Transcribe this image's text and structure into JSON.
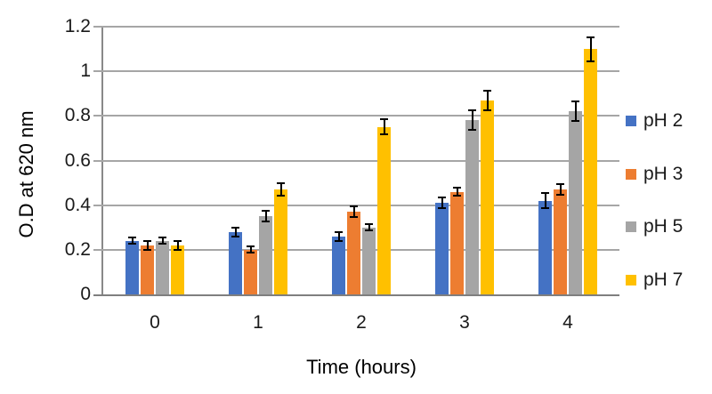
{
  "chart_data": {
    "type": "bar",
    "title": "",
    "xlabel": "Time (hours)",
    "ylabel": "O.D at 620 nm",
    "categories": [
      "0",
      "1",
      "2",
      "3",
      "4"
    ],
    "series": [
      {
        "name": "pH 2",
        "color": "#4472C4",
        "values": [
          0.24,
          0.28,
          0.26,
          0.41,
          0.42
        ],
        "errors": [
          0.01,
          0.015,
          0.015,
          0.02,
          0.03
        ]
      },
      {
        "name": "pH 3",
        "color": "#ED7D31",
        "values": [
          0.22,
          0.2,
          0.37,
          0.46,
          0.47
        ],
        "errors": [
          0.015,
          0.01,
          0.02,
          0.015,
          0.02
        ]
      },
      {
        "name": "pH 5",
        "color": "#A5A5A5",
        "values": [
          0.24,
          0.35,
          0.3,
          0.78,
          0.82
        ],
        "errors": [
          0.01,
          0.02,
          0.01,
          0.04,
          0.04
        ]
      },
      {
        "name": "pH 7",
        "color": "#FFC000",
        "values": [
          0.22,
          0.47,
          0.75,
          0.87,
          1.1
        ],
        "errors": [
          0.015,
          0.025,
          0.03,
          0.04,
          0.05
        ]
      }
    ],
    "ylim": [
      0,
      1.2
    ],
    "ytick_labels": [
      "0",
      "0.2",
      "0.4",
      "0.6",
      "0.8",
      "1",
      "1.2"
    ],
    "grid": true,
    "legend_position": "right",
    "error_bars": true,
    "colors": {
      "gridline": "#A6A6A6",
      "axis": "#7F7F7F",
      "error_bar": "#000000",
      "text": "#1A1A1A",
      "background": "#FFFFFF"
    }
  }
}
